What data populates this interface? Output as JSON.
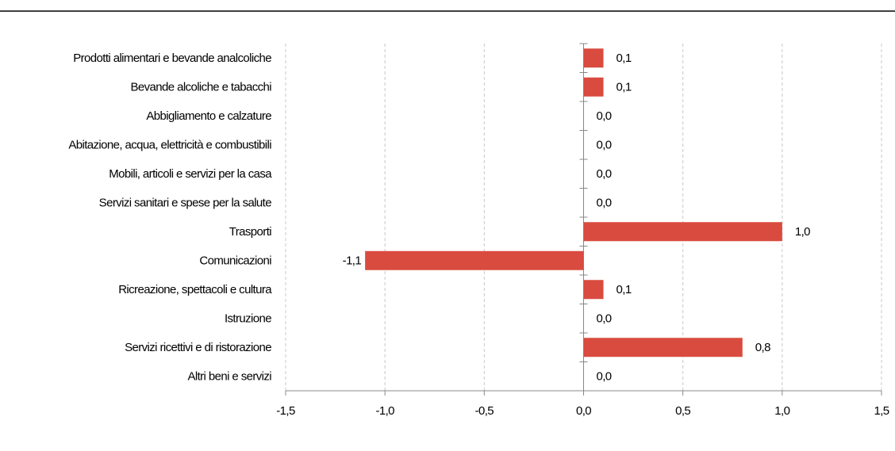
{
  "chart_data": {
    "type": "bar",
    "orientation": "horizontal",
    "categories": [
      "Prodotti alimentari e bevande analcoliche",
      "Bevande alcoliche e tabacchi",
      "Abbigliamento e calzature",
      "Abitazione, acqua, elettricità e combustibili",
      "Mobili, articoli e servizi per la casa",
      "Servizi sanitari e spese per la salute",
      "Trasporti",
      "Comunicazioni",
      "Ricreazione, spettacoli e cultura",
      "Istruzione",
      "Servizi ricettivi e di ristorazione",
      "Altri beni e servizi"
    ],
    "values": [
      0.1,
      0.1,
      0.0,
      0.0,
      0.0,
      0.0,
      1.0,
      -1.1,
      0.1,
      0.0,
      0.8,
      0.0
    ],
    "value_labels": [
      "0,1",
      "0,1",
      "0,0",
      "0,0",
      "0,0",
      "0,0",
      "1,0",
      "-1,1",
      "0,1",
      "0,0",
      "0,8",
      "0,0"
    ],
    "color": "#d94b3f",
    "xlim": [
      -1.5,
      1.5
    ],
    "xticks": [
      {
        "value": -1.5,
        "label": "-1,5"
      },
      {
        "value": -1.0,
        "label": "-1,0"
      },
      {
        "value": -0.5,
        "label": "-0,5"
      },
      {
        "value": 0.0,
        "label": "0,0"
      },
      {
        "value": 0.5,
        "label": "0,5"
      },
      {
        "value": 1.0,
        "label": "1,0"
      },
      {
        "value": 1.5,
        "label": "1,5"
      }
    ],
    "grid": true
  }
}
